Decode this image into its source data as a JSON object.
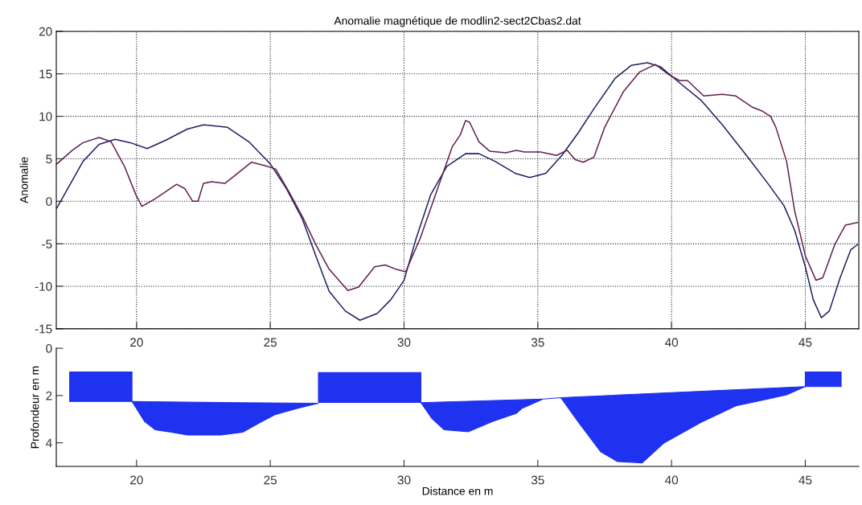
{
  "chart_data": [
    {
      "type": "line",
      "title": "Anomalie magnétique de modlin2-sect2Cbas2.dat",
      "ylabel": "Anomalie",
      "xlim": [
        17,
        47
      ],
      "xticks": [
        20,
        25,
        30,
        35,
        40,
        45
      ],
      "ylim": [
        -15,
        20
      ],
      "yticks": [
        -15,
        -10,
        -5,
        0,
        5,
        10,
        15,
        20
      ],
      "grid": true,
      "line_style": "solid",
      "series": [
        {
          "color": "#202060",
          "x": [
            17.02,
            18.0,
            18.6,
            19.2,
            19.76,
            20.4,
            21.1,
            21.9,
            22.5,
            23.4,
            24.2,
            25.0,
            25.6,
            26.2,
            26.7,
            27.2,
            27.8,
            28.35,
            29.0,
            29.5,
            30.0,
            30.45,
            31.0,
            31.6,
            32.3,
            32.8,
            33.4,
            34.15,
            34.7,
            35.3,
            35.9,
            36.5,
            37.1,
            37.9,
            38.5,
            39.1,
            39.6,
            40.2,
            41.1,
            41.9,
            42.8,
            43.6,
            44.2,
            44.6,
            45.0,
            45.3,
            45.6,
            45.9,
            46.3,
            46.7,
            46.95
          ],
          "values": [
            -0.8,
            4.7,
            6.7,
            7.3,
            6.9,
            6.2,
            7.2,
            8.5,
            9.0,
            8.7,
            7.0,
            4.4,
            1.5,
            -2.1,
            -6.4,
            -10.6,
            -12.9,
            -14.0,
            -13.2,
            -11.6,
            -9.3,
            -4.4,
            0.8,
            4.1,
            5.6,
            5.6,
            4.7,
            3.3,
            2.8,
            3.3,
            5.4,
            8.0,
            10.9,
            14.5,
            16.0,
            16.3,
            15.8,
            14.2,
            11.9,
            9.0,
            5.4,
            2.1,
            -0.5,
            -3.4,
            -7.7,
            -11.6,
            -13.7,
            -12.9,
            -9.0,
            -5.7,
            -5.1
          ]
        },
        {
          "color": "#602050",
          "x": [
            17.02,
            17.6,
            18.0,
            18.6,
            19.05,
            19.55,
            19.97,
            20.2,
            20.7,
            21.5,
            21.8,
            22.1,
            22.3,
            22.5,
            22.8,
            23.3,
            23.7,
            24.3,
            24.8,
            25.2,
            25.7,
            26.2,
            26.7,
            27.2,
            27.9,
            28.3,
            28.9,
            29.3,
            29.7,
            30.06,
            30.6,
            31.4,
            31.8,
            32.1,
            32.3,
            32.45,
            32.8,
            33.2,
            33.8,
            34.2,
            34.5,
            35.1,
            35.7,
            36.1,
            36.4,
            36.7,
            37.1,
            37.5,
            38.2,
            38.8,
            39.4,
            39.9,
            40.3,
            40.6,
            41.2,
            41.9,
            42.4,
            43.0,
            43.4,
            43.7,
            43.9,
            44.3,
            44.6,
            45.0,
            45.4,
            45.65,
            46.1,
            46.5,
            46.95
          ],
          "values": [
            4.4,
            6.0,
            6.9,
            7.5,
            7.0,
            4.1,
            0.8,
            -0.6,
            0.3,
            2.0,
            1.5,
            0.0,
            0.0,
            2.1,
            2.3,
            2.1,
            3.1,
            4.6,
            4.2,
            3.8,
            1.1,
            -1.8,
            -5.1,
            -8.0,
            -10.5,
            -10.1,
            -7.7,
            -7.5,
            -8.0,
            -8.3,
            -4.4,
            2.8,
            6.4,
            7.8,
            9.5,
            9.3,
            7.0,
            5.9,
            5.7,
            6.0,
            5.8,
            5.8,
            5.4,
            6.0,
            4.9,
            4.6,
            5.2,
            8.7,
            12.9,
            15.2,
            16.1,
            14.9,
            14.2,
            14.2,
            12.4,
            12.6,
            12.4,
            11.1,
            10.6,
            10.0,
            8.7,
            4.7,
            -1.1,
            -6.4,
            -9.3,
            -9.0,
            -5.1,
            -2.8,
            -2.5
          ]
        }
      ]
    },
    {
      "type": "area",
      "xlabel": "Distance en m",
      "ylabel": "Profondeur en m",
      "xlim": [
        17,
        47
      ],
      "xticks": [
        20,
        25,
        30,
        35,
        40,
        45
      ],
      "ylim": [
        5,
        0
      ],
      "yticks": [
        0,
        2,
        4
      ],
      "grid": false,
      "series": [
        {
          "color": "#1e32f0",
          "x": [
            17.5,
            19.83,
            19.83,
            17.5
          ],
          "values": [
            2.25,
            2.25,
            1.0,
            1.0
          ]
        },
        {
          "color": "#1e32f0",
          "x": [
            19.83,
            20.3,
            20.7,
            21.3,
            21.9,
            23.15,
            23.97,
            24.6,
            25.2,
            26.0,
            26.8,
            23.15,
            19.83
          ],
          "values": [
            2.25,
            3.1,
            3.45,
            3.55,
            3.67,
            3.67,
            3.55,
            3.15,
            2.8,
            2.55,
            2.33,
            2.3,
            2.25
          ]
        },
        {
          "color": "#1e32f0",
          "x": [
            26.8,
            30.63,
            30.63,
            26.8
          ],
          "values": [
            2.29,
            2.29,
            1.03,
            1.03
          ]
        },
        {
          "color": "#1e32f0",
          "x": [
            30.63,
            31.04,
            31.5,
            32.4,
            33.3,
            34.2,
            34.4,
            35.2,
            30.63
          ],
          "values": [
            2.3,
            2.97,
            3.45,
            3.53,
            3.1,
            2.75,
            2.55,
            2.15,
            2.3
          ]
        },
        {
          "color": "#1e32f0",
          "x": [
            35.2,
            35.86,
            36.5,
            37.35,
            37.97,
            38.9,
            39.7,
            41.1,
            42.4,
            43.6,
            44.3,
            45.0,
            35.86,
            35.2
          ],
          "values": [
            2.15,
            2.09,
            3.1,
            4.38,
            4.79,
            4.85,
            4.02,
            3.14,
            2.44,
            2.15,
            1.97,
            1.62,
            2.09,
            2.15
          ]
        },
        {
          "color": "#1e32f0",
          "x": [
            45.0,
            46.34,
            46.34,
            45.0
          ],
          "values": [
            1.62,
            1.62,
            1.0,
            1.0
          ]
        }
      ]
    }
  ]
}
